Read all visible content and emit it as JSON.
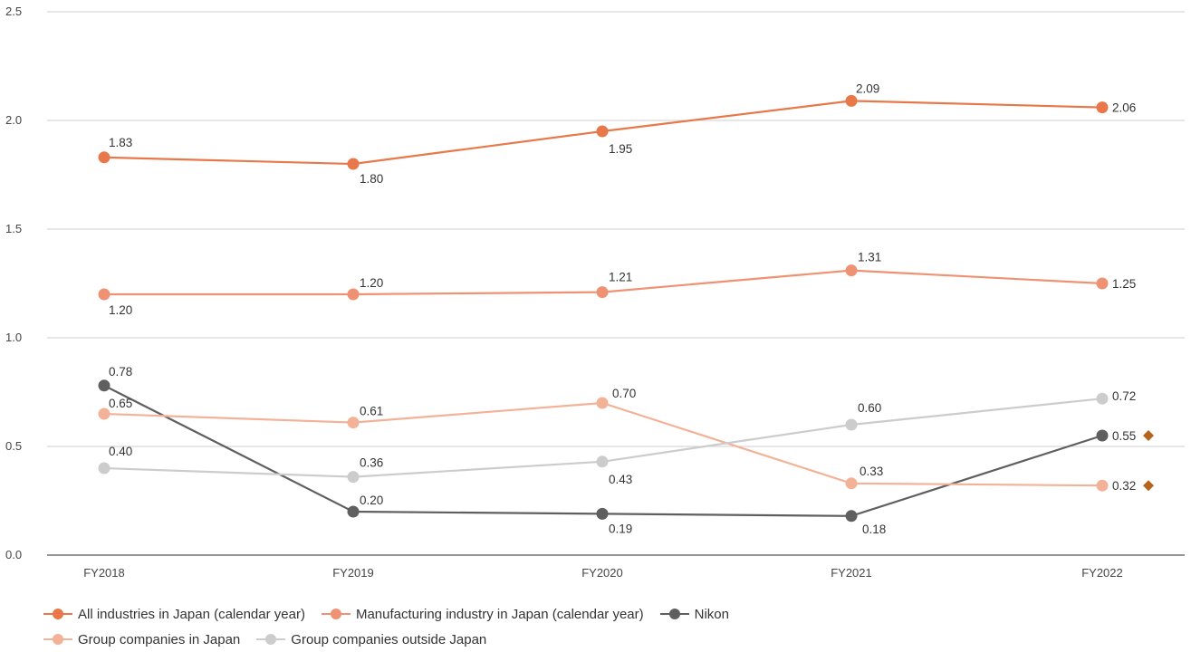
{
  "chart_data": {
    "type": "line",
    "categories": [
      "FY2018",
      "FY2019",
      "FY2020",
      "FY2021",
      "FY2022"
    ],
    "ylim": [
      0,
      2.5
    ],
    "yticks": [
      "0.0",
      "0.5",
      "1.0",
      "1.5",
      "2.0",
      "2.5"
    ],
    "grid": true,
    "legend_position": "bottom",
    "series": [
      {
        "name": "All industries in Japan (calendar year)",
        "color": "#e8784a",
        "values": [
          1.83,
          1.8,
          1.95,
          2.09,
          2.06
        ],
        "labels": [
          "1.83",
          "1.80",
          "1.95",
          "2.09",
          "2.06"
        ]
      },
      {
        "name": "Manufacturing industry in Japan (calendar year)",
        "color": "#ef9273",
        "values": [
          1.2,
          1.2,
          1.21,
          1.31,
          1.25
        ],
        "labels": [
          "1.20",
          "1.20",
          "1.21",
          "1.31",
          "1.25"
        ]
      },
      {
        "name": "Nikon",
        "color": "#5f5f5f",
        "values": [
          0.78,
          0.2,
          0.19,
          0.18,
          0.55
        ],
        "labels": [
          "0.78",
          "0.20",
          "0.19",
          "0.18",
          "0.55"
        ]
      },
      {
        "name": "Group companies in Japan",
        "color": "#f3b297",
        "values": [
          0.65,
          0.61,
          0.7,
          0.33,
          0.32
        ],
        "labels": [
          "0.65",
          "0.61",
          "0.70",
          "0.33",
          "0.32"
        ]
      },
      {
        "name": "Group companies outside Japan",
        "color": "#cccccc",
        "values": [
          0.4,
          0.36,
          0.43,
          0.6,
          0.72
        ],
        "labels": [
          "0.40",
          "0.36",
          "0.43",
          "0.60",
          "0.72"
        ]
      }
    ],
    "annotations": [
      {
        "type": "diamond",
        "series": "Nikon",
        "category": "FY2022",
        "color": "#b5651d"
      },
      {
        "type": "diamond",
        "series": "Group companies in Japan",
        "category": "FY2022",
        "color": "#b5651d"
      }
    ]
  }
}
